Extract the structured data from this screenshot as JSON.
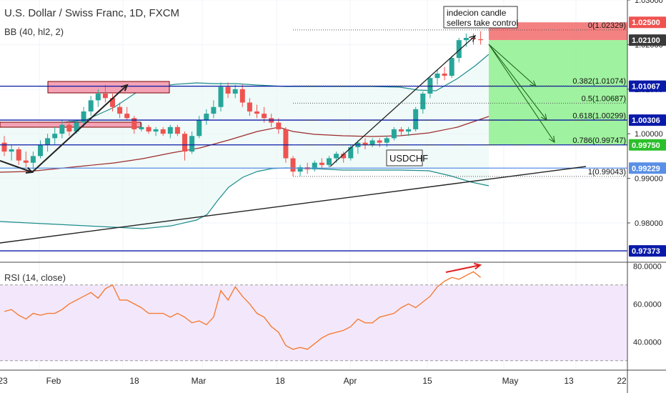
{
  "header": {
    "symbol_title": "U.S. Dollar / Swiss Franc, 1D, FXCM",
    "indicator_label": "BB (40, hl2, 2)"
  },
  "chart_data": [
    {
      "type": "candlestick",
      "title": "U.S. Dollar / Swiss Franc, 1D, FXCM",
      "series_name": "USDCHF",
      "ylim": [
        0.9715,
        1.03
      ],
      "x_tick_labels": [
        "23",
        "Feb",
        "18",
        "Mar",
        "18",
        "Apr",
        "15",
        "May",
        "13",
        "22"
      ],
      "y_tick_labels": [
        "1.03000",
        "1.02000",
        "1.01000",
        "1.00000",
        "0.99000",
        "0.98000"
      ],
      "price_tags": [
        {
          "value": "1.02500",
          "color": "#ef5350",
          "text_color": "#ffffff"
        },
        {
          "value": "1.02100",
          "color": "#3a3a3a",
          "text_color": "#ffffff"
        },
        {
          "value": "1.01067",
          "color": "#0a1aa8",
          "text_color": "#ffffff"
        },
        {
          "value": "1.00306",
          "color": "#0a1aa8",
          "text_color": "#ffffff"
        },
        {
          "value": "0.99750",
          "color": "#2bbf2b",
          "text_color": "#ffffff"
        },
        {
          "value": "0.99229",
          "color": "#5a8fe6",
          "text_color": "#ffffff"
        },
        {
          "value": "0.97373",
          "color": "#0a1aa8",
          "text_color": "#ffffff"
        }
      ],
      "horizontal_levels": [
        1.01067,
        1.00306,
        0.9975,
        0.99229,
        0.97373
      ],
      "fibonacci": [
        {
          "label": "0(1.02329)",
          "value": 1.02329
        },
        {
          "label": "0.382(1.01074)",
          "value": 1.01074
        },
        {
          "label": "0.5(1.00687)",
          "value": 1.00687
        },
        {
          "label": "0.618(1.00299)",
          "value": 1.00299
        },
        {
          "label": "0.786(0.99747)",
          "value": 0.99747
        },
        {
          "label": "1(0.99043)",
          "value": 0.99043
        }
      ],
      "annotations": [
        "indecion candle",
        "sellers take control",
        "USDCHF"
      ],
      "short_position": {
        "entry": 1.021,
        "stop": 1.025,
        "target": 0.9975
      },
      "candles": [
        {
          "o": 0.998,
          "h": 0.9995,
          "l": 0.995,
          "c": 0.996
        },
        {
          "o": 0.996,
          "h": 0.9975,
          "l": 0.994,
          "c": 0.9965
        },
        {
          "o": 0.9965,
          "h": 0.997,
          "l": 0.993,
          "c": 0.994
        },
        {
          "o": 0.994,
          "h": 0.996,
          "l": 0.9925,
          "c": 0.9935
        },
        {
          "o": 0.9935,
          "h": 0.996,
          "l": 0.992,
          "c": 0.995
        },
        {
          "o": 0.995,
          "h": 0.9985,
          "l": 0.9945,
          "c": 0.9975
        },
        {
          "o": 0.9975,
          "h": 1.0,
          "l": 0.996,
          "c": 0.999
        },
        {
          "o": 0.999,
          "h": 1.0015,
          "l": 0.9975,
          "c": 1.0
        },
        {
          "o": 1.0,
          "h": 1.003,
          "l": 0.999,
          "c": 1.002
        },
        {
          "o": 1.002,
          "h": 1.003,
          "l": 0.9995,
          "c": 1.0005
        },
        {
          "o": 1.0005,
          "h": 1.003,
          "l": 1.0,
          "c": 1.0025
        },
        {
          "o": 1.0025,
          "h": 1.006,
          "l": 1.0015,
          "c": 1.005
        },
        {
          "o": 1.005,
          "h": 1.0085,
          "l": 1.004,
          "c": 1.0075
        },
        {
          "o": 1.0075,
          "h": 1.01,
          "l": 1.006,
          "c": 1.009
        },
        {
          "o": 1.009,
          "h": 1.011,
          "l": 1.007,
          "c": 1.008
        },
        {
          "o": 1.008,
          "h": 1.009,
          "l": 1.005,
          "c": 1.006
        },
        {
          "o": 1.006,
          "h": 1.007,
          "l": 1.0035,
          "c": 1.0045
        },
        {
          "o": 1.0045,
          "h": 1.006,
          "l": 1.003,
          "c": 1.0035
        },
        {
          "o": 1.0035,
          "h": 1.004,
          "l": 1.0,
          "c": 1.001
        },
        {
          "o": 1.001,
          "h": 1.0025,
          "l": 1.0005,
          "c": 1.0015
        },
        {
          "o": 1.0015,
          "h": 1.002,
          "l": 1.0,
          "c": 1.0005
        },
        {
          "o": 1.0005,
          "h": 1.0015,
          "l": 0.9995,
          "c": 1.001
        },
        {
          "o": 1.001,
          "h": 1.0015,
          "l": 0.9995,
          "c": 1.0
        },
        {
          "o": 1.0,
          "h": 1.002,
          "l": 0.999,
          "c": 1.0015
        },
        {
          "o": 1.0015,
          "h": 1.002,
          "l": 0.9995,
          "c": 1.0
        },
        {
          "o": 1.0,
          "h": 1.0005,
          "l": 0.994,
          "c": 0.996
        },
        {
          "o": 0.996,
          "h": 1.0005,
          "l": 0.9955,
          "c": 0.9995
        },
        {
          "o": 0.9995,
          "h": 1.004,
          "l": 0.999,
          "c": 1.003
        },
        {
          "o": 1.003,
          "h": 1.0055,
          "l": 1.002,
          "c": 1.0045
        },
        {
          "o": 1.0045,
          "h": 1.0075,
          "l": 1.0035,
          "c": 1.006
        },
        {
          "o": 1.006,
          "h": 1.0115,
          "l": 1.005,
          "c": 1.0105
        },
        {
          "o": 1.0105,
          "h": 1.0115,
          "l": 1.008,
          "c": 1.009
        },
        {
          "o": 1.009,
          "h": 1.011,
          "l": 1.008,
          "c": 1.01
        },
        {
          "o": 1.01,
          "h": 1.011,
          "l": 1.006,
          "c": 1.007
        },
        {
          "o": 1.007,
          "h": 1.008,
          "l": 1.004,
          "c": 1.005
        },
        {
          "o": 1.005,
          "h": 1.0065,
          "l": 1.0035,
          "c": 1.0045
        },
        {
          "o": 1.0045,
          "h": 1.006,
          "l": 1.0025,
          "c": 1.0035
        },
        {
          "o": 1.0035,
          "h": 1.0045,
          "l": 1.0015,
          "c": 1.0025
        },
        {
          "o": 1.0025,
          "h": 1.0035,
          "l": 1.0,
          "c": 1.001
        },
        {
          "o": 1.001,
          "h": 1.0015,
          "l": 0.9935,
          "c": 0.9945
        },
        {
          "o": 0.9945,
          "h": 0.995,
          "l": 0.9905,
          "c": 0.9915
        },
        {
          "o": 0.9915,
          "h": 0.993,
          "l": 0.9905,
          "c": 0.9925
        },
        {
          "o": 0.9925,
          "h": 0.9935,
          "l": 0.991,
          "c": 0.992
        },
        {
          "o": 0.992,
          "h": 0.994,
          "l": 0.9915,
          "c": 0.9935
        },
        {
          "o": 0.9935,
          "h": 0.9945,
          "l": 0.992,
          "c": 0.993
        },
        {
          "o": 0.993,
          "h": 0.995,
          "l": 0.9925,
          "c": 0.9945
        },
        {
          "o": 0.9945,
          "h": 0.996,
          "l": 0.9935,
          "c": 0.9955
        },
        {
          "o": 0.9955,
          "h": 0.996,
          "l": 0.9935,
          "c": 0.9945
        },
        {
          "o": 0.9945,
          "h": 0.9975,
          "l": 0.994,
          "c": 0.997
        },
        {
          "o": 0.997,
          "h": 0.9985,
          "l": 0.9955,
          "c": 0.998
        },
        {
          "o": 0.998,
          "h": 0.999,
          "l": 0.9965,
          "c": 0.9975
        },
        {
          "o": 0.9975,
          "h": 0.999,
          "l": 0.997,
          "c": 0.9985
        },
        {
          "o": 0.9985,
          "h": 0.999,
          "l": 0.997,
          "c": 0.998
        },
        {
          "o": 0.998,
          "h": 0.9995,
          "l": 0.997,
          "c": 0.999
        },
        {
          "o": 0.999,
          "h": 1.0015,
          "l": 0.9985,
          "c": 1.001
        },
        {
          "o": 1.001,
          "h": 1.0015,
          "l": 0.9995,
          "c": 1.0005
        },
        {
          "o": 1.0005,
          "h": 1.0015,
          "l": 0.9995,
          "c": 1.001
        },
        {
          "o": 1.001,
          "h": 1.006,
          "l": 1.0005,
          "c": 1.0055
        },
        {
          "o": 1.0055,
          "h": 1.0095,
          "l": 1.0045,
          "c": 1.009
        },
        {
          "o": 1.009,
          "h": 1.013,
          "l": 1.008,
          "c": 1.0125
        },
        {
          "o": 1.0125,
          "h": 1.0145,
          "l": 1.011,
          "c": 1.0135
        },
        {
          "o": 1.0135,
          "h": 1.015,
          "l": 1.012,
          "c": 1.013
        },
        {
          "o": 1.013,
          "h": 1.0175,
          "l": 1.0125,
          "c": 1.017
        },
        {
          "o": 1.017,
          "h": 1.0215,
          "l": 1.016,
          "c": 1.021
        },
        {
          "o": 1.021,
          "h": 1.0225,
          "l": 1.0195,
          "c": 1.0215
        },
        {
          "o": 1.0215,
          "h": 1.0225,
          "l": 1.02,
          "c": 1.0212
        },
        {
          "o": 1.0212,
          "h": 1.023,
          "l": 1.02,
          "c": 1.021
        }
      ]
    },
    {
      "type": "line",
      "title": "RSI (14, close)",
      "series_name": "RSI (14, close)",
      "ylim": [
        25,
        82
      ],
      "y_tick_labels": [
        "80.0000",
        "60.0000",
        "40.0000"
      ],
      "upper_band": 70,
      "lower_band": 30,
      "values": [
        56,
        57,
        54,
        52,
        55,
        54,
        55,
        55,
        57,
        60,
        62,
        64,
        66,
        63,
        68,
        70,
        62,
        62,
        60,
        58,
        55,
        55,
        55,
        53,
        55,
        53,
        50,
        51,
        49,
        53,
        67,
        62,
        69,
        64,
        60,
        55,
        53,
        48,
        45,
        38,
        36,
        37,
        36,
        39,
        42,
        44,
        45,
        46,
        48,
        52,
        50,
        50,
        53,
        54,
        55,
        58,
        60,
        58,
        61,
        64,
        69,
        72,
        74,
        73,
        75,
        77,
        74
      ]
    }
  ]
}
